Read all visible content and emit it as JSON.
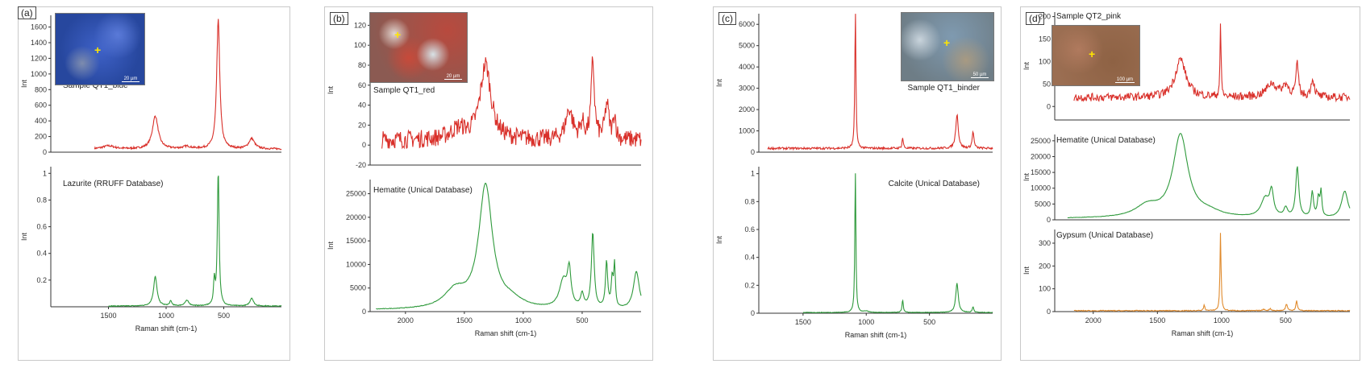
{
  "panels": [
    {
      "id": "a",
      "label": "(a)",
      "xlabel": "Raman shift (cm-1)",
      "x_range": [
        2000,
        0
      ],
      "x_ticks": [
        1500,
        1000,
        500
      ],
      "inset": {
        "scale_label": "20 µm"
      },
      "subplots": [
        {
          "title": "Sample QT1_blue",
          "ylabel": "Int",
          "color": "#d9302a",
          "y_range": [
            0,
            1750
          ],
          "y_ticks": [
            0,
            200,
            400,
            600,
            800,
            1000,
            1200,
            1400,
            1600
          ],
          "baseline": 40,
          "noise": 12,
          "peaks": [
            [
              1094,
              420,
              30
            ],
            [
              820,
              30,
              40
            ],
            [
              548,
              1650,
              16
            ],
            [
              258,
              130,
              30
            ],
            [
              1500,
              40,
              60
            ]
          ],
          "x_start": 1620,
          "x_end": 0
        },
        {
          "title": "Lazurite (RRUFF Database)",
          "ylabel": "Int",
          "color": "#2f9a3c",
          "y_range": [
            0,
            1.05
          ],
          "y_ticks": [
            0.2,
            0.4,
            0.6,
            0.8,
            1.0
          ],
          "baseline": 0.005,
          "noise": 0.003,
          "peaks": [
            [
              1094,
              0.22,
              18
            ],
            [
              960,
              0.035,
              12
            ],
            [
              820,
              0.04,
              22
            ],
            [
              582,
              0.18,
              8
            ],
            [
              548,
              1.0,
              9
            ],
            [
              258,
              0.06,
              18
            ]
          ],
          "x_start": 1500,
          "x_end": 0
        }
      ]
    },
    {
      "id": "b",
      "label": "(b)",
      "xlabel": "Raman shift (cm-1)",
      "x_range": [
        2300,
        0
      ],
      "x_ticks": [
        2000,
        1500,
        1000,
        500
      ],
      "inset": {
        "scale_label": "20 µm"
      },
      "subplots": [
        {
          "title": "Sample QT1_red",
          "ylabel": "Int",
          "color": "#d9302a",
          "y_range": [
            -20,
            130
          ],
          "y_ticks": [
            -20,
            0,
            20,
            40,
            60,
            80,
            100,
            120
          ],
          "baseline": 5,
          "noise": 9,
          "peaks": [
            [
              1320,
              75,
              55
            ],
            [
              1550,
              10,
              80
            ],
            [
              610,
              30,
              35
            ],
            [
              410,
              78,
              16
            ],
            [
              290,
              35,
              20
            ],
            [
              225,
              25,
              12
            ],
            [
              500,
              15,
              20
            ]
          ],
          "x_start": 2200,
          "x_end": 0
        },
        {
          "title": "Hematite (Unical Database)",
          "ylabel": "Int",
          "color": "#2f9a3c",
          "y_range": [
            0,
            28000
          ],
          "y_ticks": [
            0,
            5000,
            10000,
            15000,
            20000,
            25000
          ],
          "baseline": 300,
          "noise": 60,
          "peaks": [
            [
              1320,
              26000,
              70
            ],
            [
              1580,
              3600,
              110
            ],
            [
              1100,
              1500,
              120
            ],
            [
              660,
              5800,
              40
            ],
            [
              610,
              7400,
              18
            ],
            [
              500,
              2800,
              16
            ],
            [
              410,
              16000,
              14
            ],
            [
              293,
              9800,
              11
            ],
            [
              245,
              6000,
              10
            ],
            [
              225,
              8800,
              8
            ],
            [
              40,
              8000,
              30
            ]
          ],
          "x_start": 2250,
          "x_end": 0
        }
      ]
    },
    {
      "id": "c",
      "label": "(c)",
      "xlabel": "Raman shift (cm-1)",
      "x_range": [
        1850,
        0
      ],
      "x_ticks": [
        1500,
        1000,
        500
      ],
      "inset": {
        "scale_label": "50 µm"
      },
      "subplots": [
        {
          "title": "Sample QT1_binder",
          "ylabel": "Int",
          "color": "#d9302a",
          "y_range": [
            0,
            6500
          ],
          "y_ticks": [
            0,
            1000,
            2000,
            3000,
            4000,
            5000,
            6000
          ],
          "baseline": 180,
          "noise": 50,
          "peaks": [
            [
              1086,
              6600,
              5
            ],
            [
              712,
              500,
              6
            ],
            [
              282,
              1600,
              12
            ],
            [
              155,
              800,
              8
            ]
          ],
          "x_start": 1780,
          "x_end": 0
        },
        {
          "title": "Calcite (Unical Database)",
          "ylabel": "Int",
          "color": "#2f9a3c",
          "y_range": [
            0,
            1.05
          ],
          "y_ticks": [
            0,
            0.2,
            0.4,
            0.6,
            0.8,
            1.0
          ],
          "baseline": 0.005,
          "noise": 0.002,
          "peaks": [
            [
              1086,
              1.0,
              5
            ],
            [
              712,
              0.09,
              6
            ],
            [
              282,
              0.21,
              12
            ],
            [
              155,
              0.04,
              7
            ],
            [
              1000,
              0.01,
              20
            ]
          ],
          "x_start": 1500,
          "x_end": 0
        }
      ]
    },
    {
      "id": "d",
      "label": "(d)",
      "xlabel": "Raman shift (cm-1)",
      "x_range": [
        2300,
        0
      ],
      "x_ticks": [
        2000,
        1500,
        1000,
        500
      ],
      "inset": {
        "scale_label": "100 µm"
      },
      "subplots": [
        {
          "title": "Sample QT2_pink",
          "ylabel": "Int",
          "color": "#d9302a",
          "y_range": [
            -30,
            210
          ],
          "y_ticks": [
            0,
            50,
            100,
            150,
            200
          ],
          "baseline": 20,
          "noise": 9,
          "peaks": [
            [
              1320,
              85,
              50
            ],
            [
              1008,
              160,
              5
            ],
            [
              610,
              30,
              50
            ],
            [
              410,
              70,
              12
            ],
            [
              290,
              40,
              16
            ],
            [
              500,
              25,
              30
            ]
          ],
          "x_start": 2150,
          "x_end": 0
        },
        {
          "title": "Hematite (Unical Database)",
          "ylabel": "Int",
          "color": "#2f9a3c",
          "y_range": [
            0,
            27000
          ],
          "y_ticks": [
            0,
            5000,
            10000,
            15000,
            20000,
            25000
          ],
          "baseline": 400,
          "noise": 60,
          "peaks": [
            [
              1320,
              26000,
              70
            ],
            [
              1580,
              3600,
              110
            ],
            [
              1100,
              1500,
              120
            ],
            [
              660,
              5800,
              40
            ],
            [
              610,
              7400,
              18
            ],
            [
              500,
              2800,
              16
            ],
            [
              410,
              16000,
              14
            ],
            [
              293,
              8000,
              11
            ],
            [
              245,
              6000,
              10
            ],
            [
              225,
              7800,
              8
            ],
            [
              40,
              8500,
              30
            ]
          ],
          "x_start": 2200,
          "x_end": 0
        },
        {
          "title": "Gypsum (Unical Database)",
          "ylabel": "Int",
          "color": "#e08a2c",
          "y_range": [
            0,
            360
          ],
          "y_ticks": [
            0,
            100,
            200,
            300
          ],
          "baseline": 4,
          "noise": 2,
          "peaks": [
            [
              1008,
              345,
              5
            ],
            [
              1135,
              25,
              6
            ],
            [
              494,
              30,
              8
            ],
            [
              415,
              45,
              7
            ],
            [
              620,
              8,
              10
            ],
            [
              670,
              6,
              10
            ]
          ],
          "x_start": 2150,
          "x_end": 0
        }
      ]
    }
  ],
  "chart_data": [
    {
      "type": "line",
      "panel": "a",
      "xlabel": "Raman shift (cm-1)",
      "series": [
        {
          "name": "Sample QT1_blue",
          "peaks_cm": [
            1094,
            548,
            258
          ],
          "max_int": 1650,
          "ylim": [
            0,
            1750
          ]
        },
        {
          "name": "Lazurite (RRUFF Database)",
          "peaks_cm": [
            1094,
            582,
            548,
            258
          ],
          "max_int": 1.0,
          "ylim": [
            0,
            1.05
          ]
        }
      ]
    },
    {
      "type": "line",
      "panel": "b",
      "xlabel": "Raman shift (cm-1)",
      "series": [
        {
          "name": "Sample QT1_red",
          "peaks_cm": [
            1320,
            610,
            410,
            290
          ],
          "max_int": 80,
          "ylim": [
            -20,
            130
          ]
        },
        {
          "name": "Hematite (Unical Database)",
          "peaks_cm": [
            1320,
            660,
            610,
            410,
            293,
            225
          ],
          "max_int": 26000,
          "ylim": [
            0,
            28000
          ]
        }
      ]
    },
    {
      "type": "line",
      "panel": "c",
      "xlabel": "Raman shift (cm-1)",
      "series": [
        {
          "name": "Sample QT1_binder",
          "peaks_cm": [
            1086,
            712,
            282,
            155
          ],
          "max_int": 6800,
          "ylim": [
            0,
            6500
          ]
        },
        {
          "name": "Calcite (Unical Database)",
          "peaks_cm": [
            1086,
            712,
            282,
            155
          ],
          "max_int": 1.0,
          "ylim": [
            0,
            1.05
          ]
        }
      ]
    },
    {
      "type": "line",
      "panel": "d",
      "xlabel": "Raman shift (cm-1)",
      "series": [
        {
          "name": "Sample QT2_pink",
          "peaks_cm": [
            1320,
            1008,
            410,
            290
          ],
          "max_int": 180,
          "ylim": [
            -30,
            210
          ]
        },
        {
          "name": "Hematite (Unical Database)",
          "peaks_cm": [
            1320,
            660,
            610,
            410,
            293,
            225
          ],
          "max_int": 26000,
          "ylim": [
            0,
            27000
          ]
        },
        {
          "name": "Gypsum (Unical Database)",
          "peaks_cm": [
            1008,
            1135,
            494,
            415
          ],
          "max_int": 345,
          "ylim": [
            0,
            360
          ]
        }
      ]
    }
  ]
}
